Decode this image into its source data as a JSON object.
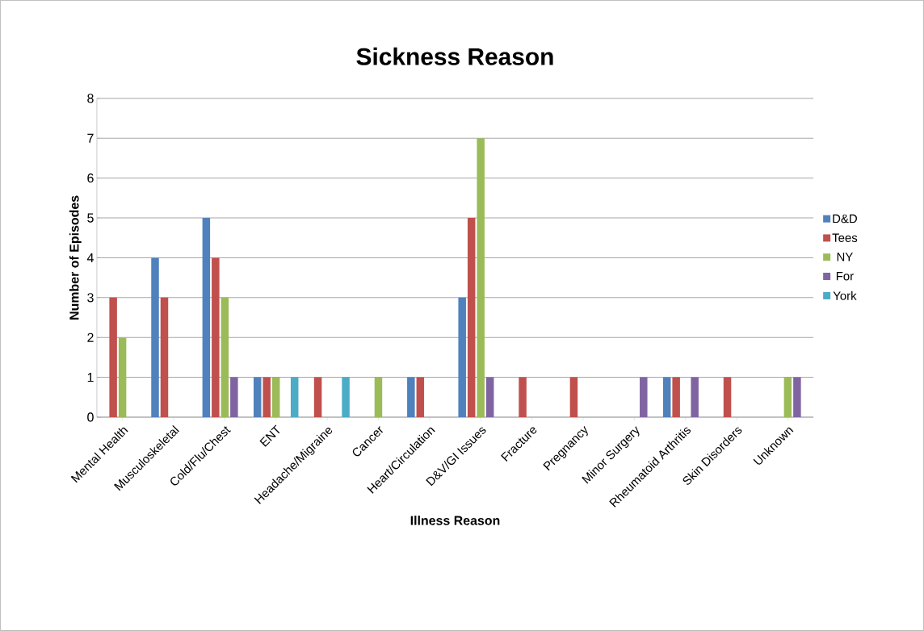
{
  "chart_data": {
    "type": "bar",
    "title": "Sickness Reason",
    "xlabel": "Illness Reason",
    "ylabel": "Number of Episodes",
    "categories": [
      "Mental Health",
      "Musculoskeletal",
      "Cold/Flu/Chest",
      "ENT",
      "Headache/Migraine",
      "Cancer",
      "Heart/Circulation",
      "D&V/GI Issues",
      "Fracture",
      "Pregnancy",
      "Minor Surgery",
      "Rheumatoid Arthritis",
      "Skin Disorders",
      "Unknown"
    ],
    "series": [
      {
        "name": "D&D",
        "color": "#4f81bd",
        "values": [
          0,
          4,
          5,
          1,
          0,
          0,
          1,
          3,
          0,
          0,
          0,
          1,
          0,
          0
        ]
      },
      {
        "name": "Tees",
        "color": "#c0504d",
        "values": [
          3,
          3,
          4,
          1,
          1,
          0,
          1,
          5,
          1,
          1,
          0,
          1,
          1,
          0
        ]
      },
      {
        "name": "NY",
        "color": "#9bbb59",
        "values": [
          2,
          0,
          3,
          1,
          0,
          1,
          0,
          7,
          0,
          0,
          0,
          0,
          0,
          1
        ]
      },
      {
        "name": "For",
        "color": "#8064a2",
        "values": [
          0,
          0,
          1,
          0,
          0,
          0,
          0,
          1,
          0,
          0,
          1,
          1,
          0,
          1
        ]
      },
      {
        "name": "York",
        "color": "#4bacc6",
        "values": [
          0,
          0,
          0,
          1,
          1,
          0,
          0,
          0,
          0,
          0,
          0,
          0,
          0,
          0
        ]
      }
    ],
    "ylim": [
      0,
      8
    ],
    "yticks": [
      0,
      1,
      2,
      3,
      4,
      5,
      6,
      7,
      8
    ],
    "grid": "y",
    "legend": "right"
  }
}
